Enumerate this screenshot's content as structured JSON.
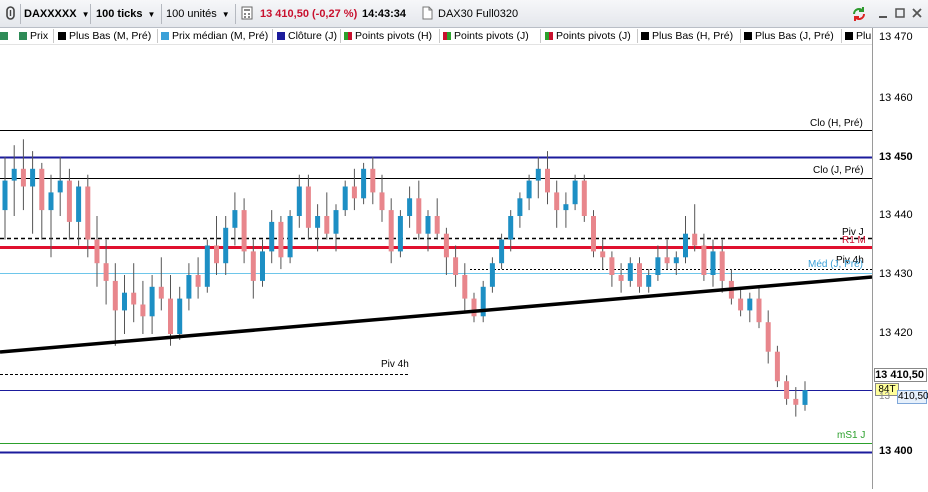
{
  "toolbar": {
    "symbol": "DAXXXXX",
    "ticks": "100 ticks",
    "units": "100 unités",
    "quote": "13 410,50 (-0,27 %)",
    "time": "14:43:34",
    "instrument": "DAX30 Full0320",
    "colors": {
      "quote": "#c8102e"
    }
  },
  "legend": [
    {
      "label": "Prix",
      "color": "#2e8b57"
    },
    {
      "label": "Plus Bas (M, Pré)",
      "color": "#000000"
    },
    {
      "label": "Prix médian (M, Pré)",
      "color": "#3aa0d8"
    },
    {
      "label": "Clôture (J)",
      "color": "#1b1b9c"
    },
    {
      "label": "Points pivots (H)",
      "color": "#c8102e"
    },
    {
      "label": "Points pivots (J)",
      "color": "#2ca02c"
    },
    {
      "label": "Points pivots (J)",
      "color": "#c8102e"
    },
    {
      "label": "Plus Bas (H, Pré)",
      "color": "#000000"
    },
    {
      "label": "Plus Bas (J, Pré)",
      "color": "#000000"
    },
    {
      "label": "Plu",
      "color": "#000000"
    }
  ],
  "axis": {
    "ticks": [
      {
        "value": "13 470",
        "bold": false,
        "price": 13470
      },
      {
        "value": "13 460",
        "bold": false,
        "price": 13460
      },
      {
        "value": "13 450",
        "bold": true,
        "price": 13450
      },
      {
        "value": "13 440",
        "bold": false,
        "price": 13440
      },
      {
        "value": "13 430",
        "bold": false,
        "price": 13430
      },
      {
        "value": "13 420",
        "bold": false,
        "price": 13420
      },
      {
        "value": "13 400",
        "bold": true,
        "price": 13400
      }
    ],
    "last_price": "13 410,50",
    "tick_count": "84T",
    "bid": "410,50",
    "bid_prefix": "13"
  },
  "levels": {
    "clo_h_pre": {
      "label": "Clo (H, Pré)",
      "price": 13454.5
    },
    "clo_j_pre": {
      "label": "Clo (J, Pré)",
      "price": 13446.5
    },
    "piv_j": {
      "label": "Piv J",
      "price": 13436.2
    },
    "r1_m": {
      "label": "R1 M",
      "price": 13434.7
    },
    "piv_4h_right": {
      "label": "Piv 4h",
      "price": 13431
    },
    "med": {
      "label": "Méd (J, Pré)",
      "price": 13430.3
    },
    "piv_4h_left": {
      "label": "Piv 4h",
      "price": 13413.2
    },
    "ms1_j": {
      "label": "mS1 J",
      "price": 13401.5
    },
    "close_line": {
      "price": 13450
    },
    "low_line": {
      "price": 13400
    },
    "last_line": {
      "price": 13410.5
    }
  },
  "candles": [
    [
      13441,
      13450,
      13436,
      13446
    ],
    [
      13446,
      13452,
      13440,
      13448
    ],
    [
      13448,
      13453,
      13441,
      13445
    ],
    [
      13445,
      13451,
      13437,
      13448
    ],
    [
      13448,
      13449,
      13436,
      13441
    ],
    [
      13441,
      13447,
      13433,
      13444
    ],
    [
      13444,
      13450,
      13440,
      13446
    ],
    [
      13446,
      13448,
      13436,
      13439
    ],
    [
      13439,
      13446,
      13435,
      13445
    ],
    [
      13445,
      13447,
      13433,
      13436
    ],
    [
      13436,
      13440,
      13428,
      13432
    ],
    [
      13432,
      13436,
      13425,
      13429
    ],
    [
      13429,
      13432,
      13418,
      13424
    ],
    [
      13424,
      13430,
      13420,
      13427
    ],
    [
      13427,
      13432,
      13422,
      13425
    ],
    [
      13425,
      13429,
      13420,
      13423
    ],
    [
      13423,
      13430,
      13420,
      13428
    ],
    [
      13428,
      13433,
      13424,
      13426
    ],
    [
      13426,
      13430,
      13418,
      13420
    ],
    [
      13420,
      13428,
      13419,
      13426
    ],
    [
      13426,
      13432,
      13424,
      13430
    ],
    [
      13430,
      13433,
      13426,
      13428
    ],
    [
      13428,
      13436,
      13427,
      13435
    ],
    [
      13435,
      13440,
      13430,
      13432
    ],
    [
      13432,
      13440,
      13430,
      13438
    ],
    [
      13438,
      13444,
      13435,
      13441
    ],
    [
      13441,
      13443,
      13432,
      13434
    ],
    [
      13434,
      13436,
      13426,
      13429
    ],
    [
      13429,
      13436,
      13428,
      13434
    ],
    [
      13434,
      13441,
      13432,
      13439
    ],
    [
      13439,
      13440,
      13431,
      13433
    ],
    [
      13433,
      13441,
      13432,
      13440
    ],
    [
      13440,
      13447,
      13438,
      13445
    ],
    [
      13445,
      13447,
      13436,
      13438
    ],
    [
      13438,
      13442,
      13434,
      13440
    ],
    [
      13440,
      13444,
      13436,
      13437
    ],
    [
      13437,
      13442,
      13434,
      13441
    ],
    [
      13441,
      13446,
      13440,
      13445
    ],
    [
      13445,
      13448,
      13441,
      13443
    ],
    [
      13443,
      13449,
      13442,
      13448
    ],
    [
      13448,
      13450,
      13442,
      13444
    ],
    [
      13444,
      13447,
      13439,
      13441
    ],
    [
      13441,
      13443,
      13432,
      13434
    ],
    [
      13434,
      13441,
      13433,
      13440
    ],
    [
      13440,
      13445,
      13438,
      13443
    ],
    [
      13443,
      13446,
      13436,
      13437
    ],
    [
      13437,
      13441,
      13434,
      13440
    ],
    [
      13440,
      13443,
      13436,
      13437
    ],
    [
      13437,
      13438,
      13430,
      13433
    ],
    [
      13433,
      13435,
      13428,
      13430
    ],
    [
      13430,
      13432,
      13424,
      13426
    ],
    [
      13426,
      13427,
      13422,
      13423
    ],
    [
      13423,
      13429,
      13422,
      13428
    ],
    [
      13428,
      13433,
      13427,
      13432
    ],
    [
      13432,
      13437,
      13431,
      13436
    ],
    [
      13436,
      13441,
      13434,
      13440
    ],
    [
      13440,
      13444,
      13438,
      13443
    ],
    [
      13443,
      13447,
      13441,
      13446
    ],
    [
      13446,
      13450,
      13443,
      13448
    ],
    [
      13448,
      13451,
      13442,
      13444
    ],
    [
      13444,
      13446,
      13438,
      13441
    ],
    [
      13441,
      13444,
      13438,
      13442
    ],
    [
      13442,
      13447,
      13441,
      13446
    ],
    [
      13446,
      13447,
      13439,
      13440
    ],
    [
      13440,
      13441,
      13433,
      13434
    ],
    [
      13434,
      13436,
      13431,
      13433
    ],
    [
      13433,
      13434,
      13428,
      13430
    ],
    [
      13430,
      13432,
      13427,
      13429
    ],
    [
      13429,
      13433,
      13428,
      13432
    ],
    [
      13432,
      13433,
      13427,
      13428
    ],
    [
      13428,
      13431,
      13427,
      13430
    ],
    [
      13430,
      13435,
      13429,
      13433
    ],
    [
      13433,
      13436,
      13431,
      13432
    ],
    [
      13432,
      13434,
      13430,
      13433
    ],
    [
      13433,
      13440,
      13432,
      13437
    ],
    [
      13437,
      13442,
      13434,
      13435
    ],
    [
      13435,
      13437,
      13429,
      13430
    ],
    [
      13430,
      13436,
      13428,
      13434
    ],
    [
      13434,
      13436,
      13427,
      13429
    ],
    [
      13429,
      13431,
      13425,
      13426
    ],
    [
      13426,
      13428,
      13423,
      13424
    ],
    [
      13424,
      13427,
      13422,
      13426
    ],
    [
      13426,
      13428,
      13421,
      13422
    ],
    [
      13422,
      13424,
      13415,
      13417
    ],
    [
      13417,
      13418,
      13411,
      13412
    ],
    [
      13412,
      13413,
      13408,
      13409
    ],
    [
      13409,
      13411,
      13406,
      13408
    ],
    [
      13408,
      13412,
      13407,
      13410.5
    ]
  ]
}
